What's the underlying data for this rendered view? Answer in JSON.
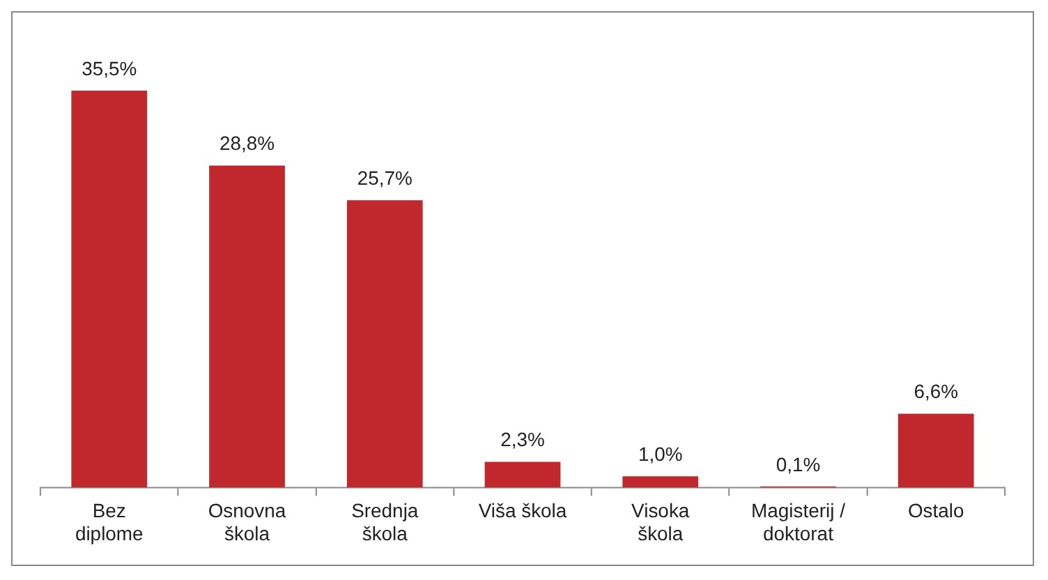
{
  "chart_data": {
    "type": "bar",
    "categories": [
      "Bez diplome",
      "Osnovna škola",
      "Srednja škola",
      "Viša škola",
      "Visoka škola",
      "Magisterij / doktorat",
      "Ostalo"
    ],
    "values": [
      35.5,
      28.8,
      25.7,
      2.3,
      1.0,
      0.1,
      6.6
    ],
    "value_labels": [
      "35,5%",
      "28,8%",
      "25,7%",
      "2,3%",
      "1,0%",
      "0,1%",
      "6,6%"
    ],
    "color": "#c0282d",
    "grid": false,
    "legend": false
  }
}
